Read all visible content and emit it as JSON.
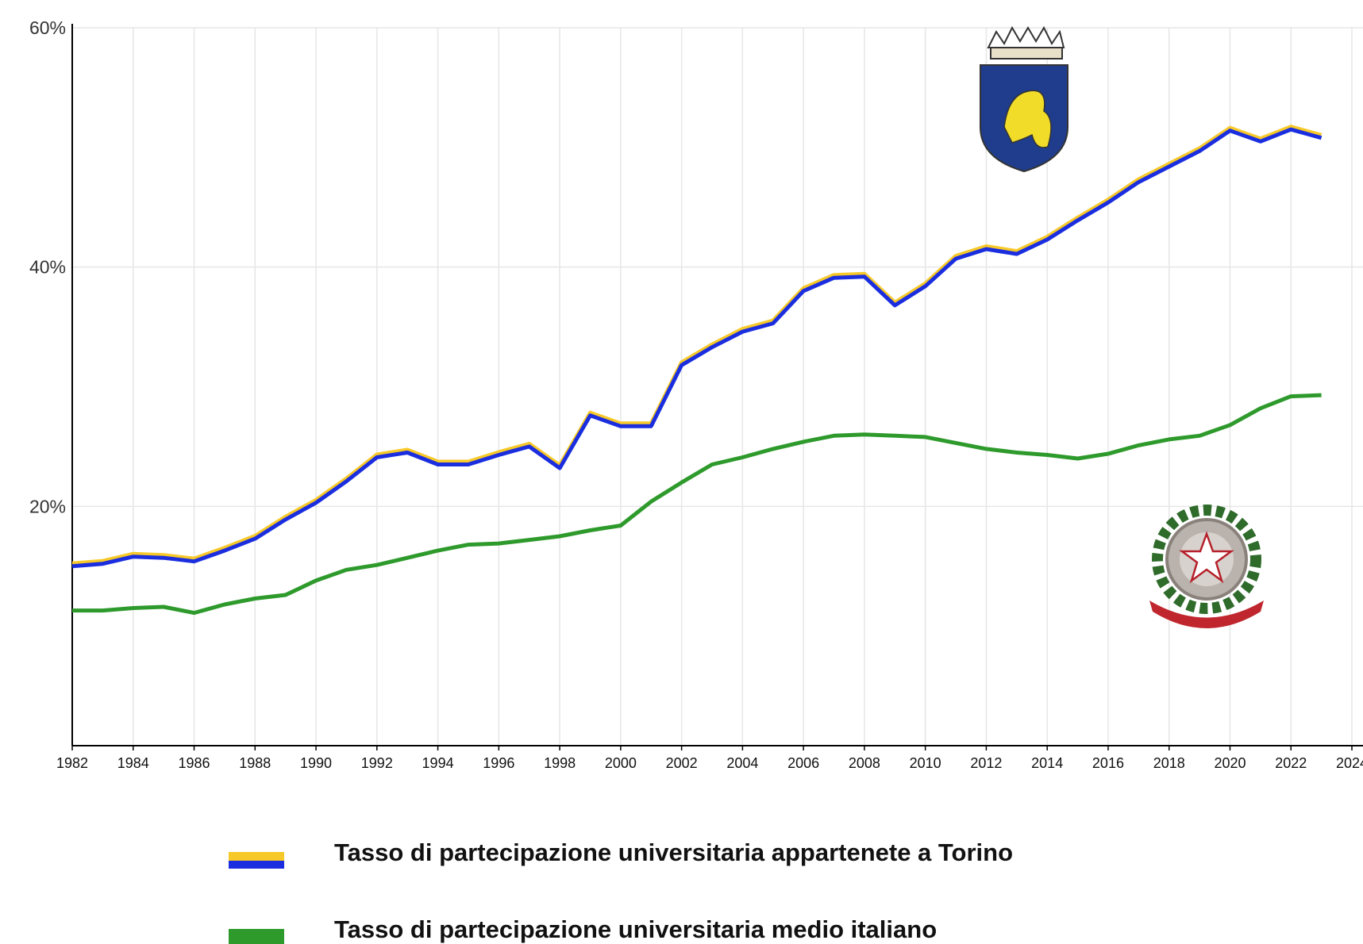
{
  "chart_data": {
    "type": "line",
    "x": [
      1982,
      1983,
      1984,
      1985,
      1986,
      1987,
      1988,
      1989,
      1990,
      1991,
      1992,
      1993,
      1994,
      1995,
      1996,
      1997,
      1998,
      1999,
      2000,
      2001,
      2002,
      2003,
      2004,
      2005,
      2006,
      2007,
      2008,
      2009,
      2010,
      2011,
      2012,
      2013,
      2014,
      2015,
      2016,
      2017,
      2018,
      2019,
      2020,
      2021,
      2022,
      2023
    ],
    "series": [
      {
        "name": "Tasso di partecipazione universitaria appartenete a Torino",
        "color": "#1a2ee0",
        "outline_color": "#f7c928",
        "values": [
          15.0,
          15.2,
          15.8,
          15.7,
          15.4,
          16.3,
          17.3,
          18.9,
          20.3,
          22.1,
          24.1,
          24.5,
          23.5,
          23.5,
          24.3,
          25.0,
          23.2,
          27.6,
          26.7,
          26.7,
          31.8,
          33.3,
          34.6,
          35.3,
          38.0,
          39.1,
          39.2,
          36.8,
          38.4,
          40.7,
          41.5,
          41.1,
          42.3,
          43.9,
          45.4,
          47.1,
          48.4,
          49.7,
          51.4,
          50.5,
          51.5,
          50.8
        ]
      },
      {
        "name": "Tasso di partecipazione universitaria medio italiano",
        "color": "#2e9a2c",
        "values": [
          11.3,
          11.3,
          11.5,
          11.6,
          11.1,
          11.8,
          12.3,
          12.6,
          13.8,
          14.7,
          15.1,
          15.7,
          16.3,
          16.8,
          16.9,
          17.2,
          17.5,
          18.0,
          18.4,
          20.4,
          22.0,
          23.5,
          24.1,
          24.8,
          25.4,
          25.9,
          26.0,
          25.9,
          25.8,
          25.3,
          24.8,
          24.5,
          24.3,
          24.0,
          24.4,
          25.1,
          25.6,
          25.9,
          26.8,
          28.2,
          29.2,
          29.3
        ]
      }
    ],
    "xlim": [
      1982,
      2024
    ],
    "xticks": [
      1982,
      1984,
      1986,
      1988,
      1990,
      1992,
      1994,
      1996,
      1998,
      2000,
      2002,
      2004,
      2006,
      2008,
      2010,
      2012,
      2014,
      2016,
      2018,
      2020,
      2022,
      2024
    ],
    "ylim": [
      0,
      60
    ],
    "yticks": [
      {
        "value": 20,
        "label": "20%"
      },
      {
        "value": 40,
        "label": "40%"
      },
      {
        "value": 60,
        "label": "60%"
      }
    ],
    "grid": true
  }
}
